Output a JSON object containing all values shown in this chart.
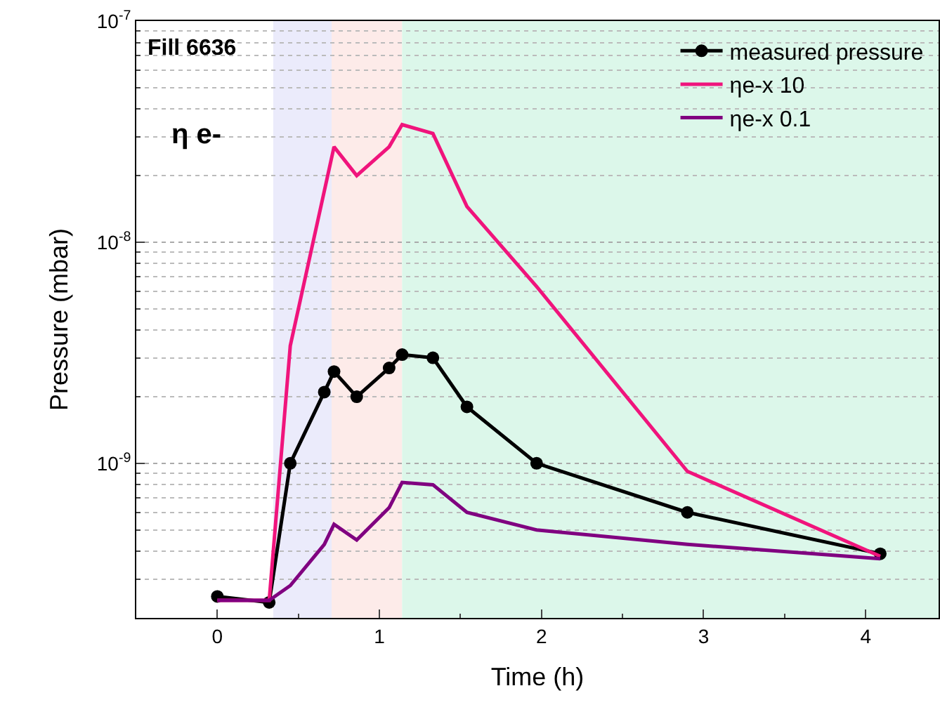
{
  "chart_data": {
    "type": "line",
    "xlabel": "Time (h)",
    "ylabel": "Pressure (mbar)",
    "x": [
      0,
      0.32,
      0.45,
      0.66,
      0.72,
      0.86,
      1.06,
      1.14,
      1.33,
      1.54,
      1.97,
      2.9,
      4.09
    ],
    "series": [
      {
        "name": "measured pressure",
        "color": "#000000",
        "marker": "circle",
        "values": [
          2.5e-10,
          2.35e-10,
          1e-09,
          2.1e-09,
          2.6e-09,
          2e-09,
          2.7e-09,
          3.1e-09,
          3e-09,
          1.8e-09,
          1e-09,
          6e-10,
          3.9e-10
        ]
      },
      {
        "name": "ηe-x 10",
        "color": "#f0147c",
        "marker": "none",
        "values": [
          2.4e-10,
          2.4e-10,
          3.4e-09,
          null,
          2.7e-08,
          2e-08,
          2.7e-08,
          3.4e-08,
          3.1e-08,
          1.45e-08,
          6.3e-09,
          9.2e-10,
          3.8e-10
        ]
      },
      {
        "name": "ηe-x 0.1",
        "color": "#800080",
        "marker": "none",
        "values": [
          2.4e-10,
          2.4e-10,
          2.8e-10,
          4.3e-10,
          5.3e-10,
          4.5e-10,
          6.3e-10,
          8.2e-10,
          8e-10,
          6e-10,
          5e-10,
          4.3e-10,
          3.7e-10
        ]
      }
    ],
    "log": "y",
    "xlim": [
      -0.5,
      4.45
    ],
    "xticks": [
      0,
      1,
      2,
      3,
      4
    ],
    "ylim": [
      2e-10,
      1e-07
    ],
    "yticks": [
      {
        "value": 1e-09,
        "label": "10$^{-9}$"
      },
      {
        "value": 1e-08,
        "label": "10$^{-8}$"
      },
      {
        "value": 1e-07,
        "label": "10$^{-7}$"
      }
    ],
    "grid": "y",
    "legend": "top right",
    "line_style": "solid",
    "bands": [
      {
        "axis": "x",
        "from": 0.345,
        "to": 0.705,
        "color": "#ebebfb"
      },
      {
        "axis": "x",
        "from": 0.705,
        "to": 1.14,
        "color": "#fdebe9"
      },
      {
        "axis": "x",
        "from": 1.14,
        "to": 4.45,
        "color": "#dcf7ea"
      }
    ],
    "annotations": [
      {
        "text": "Fill 6636"
      },
      {
        "text": "η e-"
      }
    ]
  }
}
